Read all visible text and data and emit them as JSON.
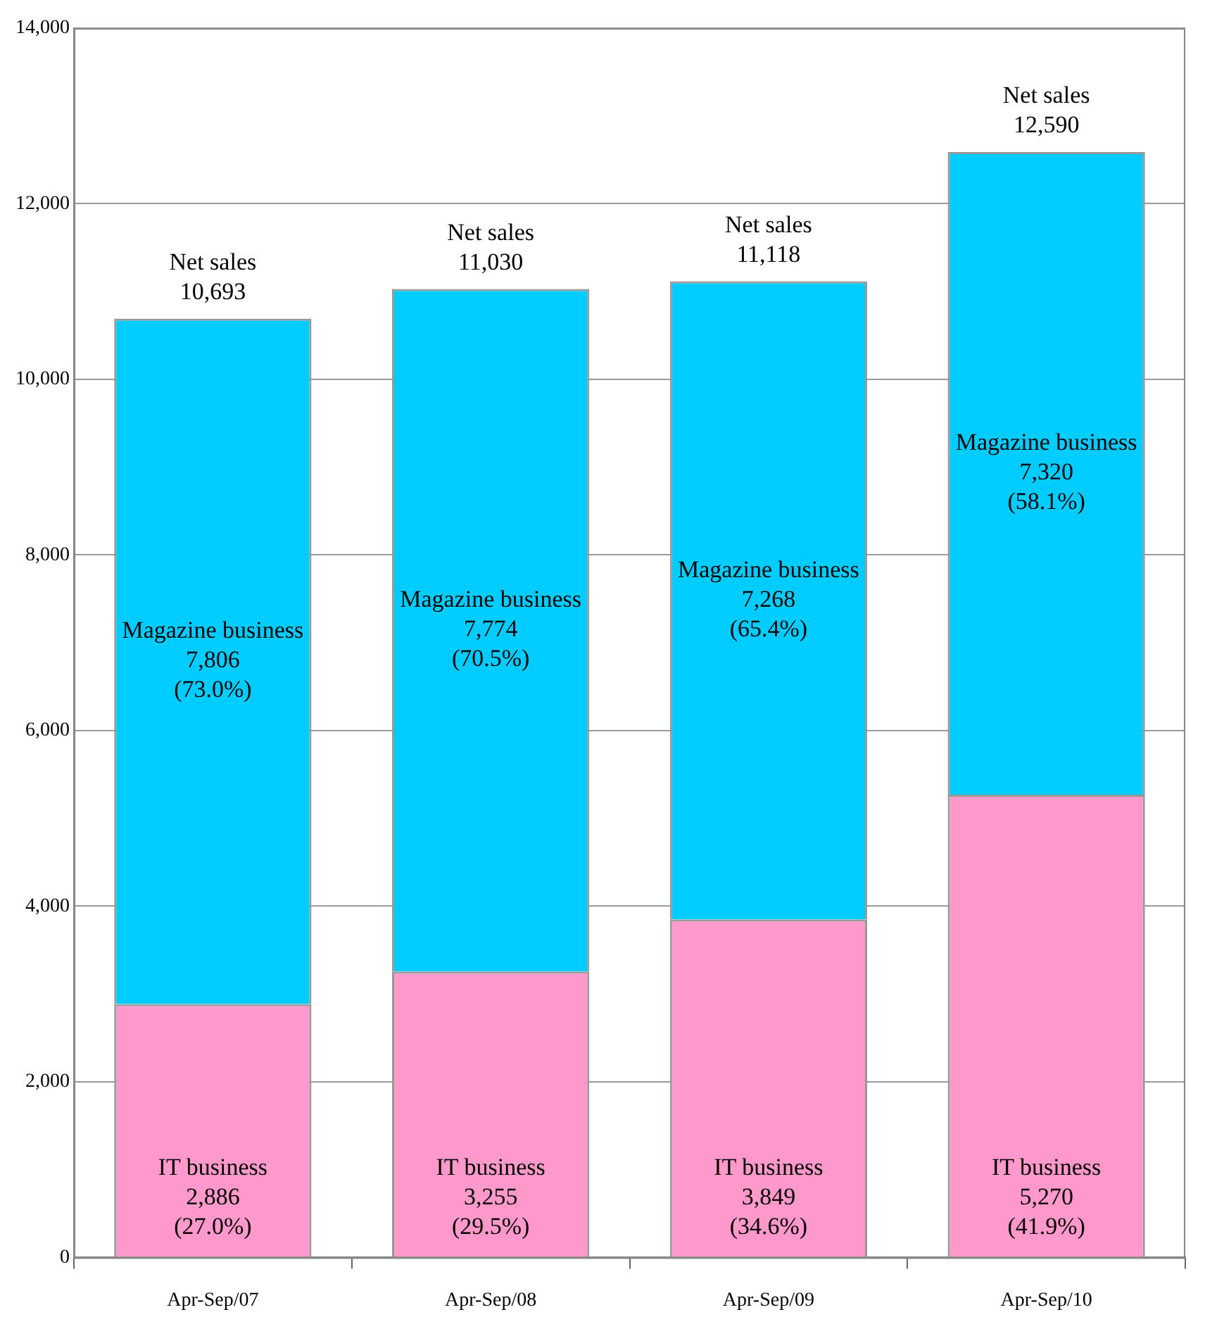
{
  "chart_data": {
    "type": "bar",
    "stacked": true,
    "categories": [
      "Apr-Sep/07",
      "Apr-Sep/08",
      "Apr-Sep/09",
      "Apr-Sep/10"
    ],
    "series": [
      {
        "name": "IT business",
        "color": "#ff99cc",
        "values": [
          2886,
          3255,
          3849,
          5270
        ],
        "value_labels": [
          "2,886\n(27.0%)",
          "3,255\n(29.5%)",
          "3,849\n(34.6%)",
          "5,270\n(41.9%)"
        ]
      },
      {
        "name": "Magazine business",
        "color": "#00ccff",
        "values": [
          7806,
          7774,
          7268,
          7320
        ],
        "value_labels": [
          "7,806\n(73.0%)",
          "7,774\n(70.5%)",
          "7,268\n(65.4%)",
          "7,320\n(58.1%)"
        ]
      }
    ],
    "totals": [
      "Net sales\n10,693",
      "Net sales\n11,030",
      "Net sales\n11,118",
      "Net sales\n12,590"
    ],
    "ylim": [
      0,
      14000
    ],
    "yticks": [
      {
        "value": 0,
        "label": "0"
      },
      {
        "value": 2000,
        "label": "2,000"
      },
      {
        "value": 4000,
        "label": "4,000"
      },
      {
        "value": 6000,
        "label": "6,000"
      },
      {
        "value": 8000,
        "label": "8,000"
      },
      {
        "value": 10000,
        "label": "10,000"
      },
      {
        "value": 12000,
        "label": "12,000"
      },
      {
        "value": 14000,
        "label": "14,000"
      }
    ],
    "grid": "y",
    "legend": false
  }
}
